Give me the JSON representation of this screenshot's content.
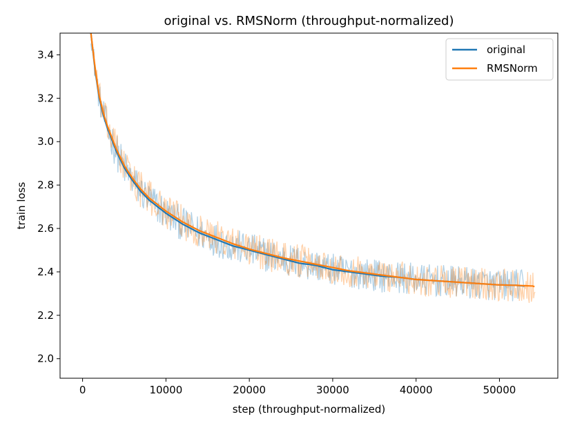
{
  "chart_data": {
    "type": "line",
    "title": "original vs. RMSNorm (throughput-normalized)",
    "xlabel": "step (throughput-normalized)",
    "ylabel": "train loss",
    "xlim": [
      -2700,
      57000
    ],
    "ylim": [
      1.91,
      3.5
    ],
    "x_ticks": [
      0,
      10000,
      20000,
      30000,
      40000,
      50000
    ],
    "y_ticks": [
      2.0,
      2.2,
      2.4,
      2.6,
      2.8,
      3.0,
      3.2,
      3.4
    ],
    "x_tick_labels": [
      "0",
      "10000",
      "20000",
      "30000",
      "40000",
      "50000"
    ],
    "y_tick_labels": [
      "2.0",
      "2.2",
      "2.4",
      "2.6",
      "2.8",
      "3.0",
      "3.2",
      "3.4"
    ],
    "grid": false,
    "legend_position": "top-right",
    "series": [
      {
        "name": "original",
        "color": "#1f77b4",
        "x": [
          1000,
          1500,
          2000,
          2500,
          3000,
          4000,
          5000,
          6000,
          7000,
          8000,
          9000,
          10000,
          12000,
          14000,
          16000,
          18000,
          20000,
          22000,
          24000,
          26000,
          28000,
          30000,
          32000,
          34000,
          36000,
          38000,
          40000,
          42000,
          44000,
          46000,
          48000,
          50000,
          52000,
          53000
        ],
        "smooth": [
          3.5,
          3.33,
          3.2,
          3.12,
          3.06,
          2.96,
          2.88,
          2.82,
          2.77,
          2.73,
          2.7,
          2.67,
          2.62,
          2.58,
          2.55,
          2.52,
          2.5,
          2.48,
          2.46,
          2.44,
          2.43,
          2.41,
          2.4,
          2.39,
          2.38,
          2.375,
          2.365,
          2.36,
          2.355,
          2.35,
          2.345,
          2.34,
          2.338,
          2.335
        ],
        "noise_halfwidth": [
          0.05,
          0.06,
          0.07,
          0.075,
          0.08,
          0.085,
          0.085,
          0.085,
          0.085,
          0.085,
          0.085,
          0.08,
          0.08,
          0.08,
          0.08,
          0.08,
          0.08,
          0.08,
          0.08,
          0.08,
          0.075,
          0.075,
          0.075,
          0.075,
          0.075,
          0.075,
          0.075,
          0.075,
          0.075,
          0.075,
          0.075,
          0.075,
          0.075,
          0.075
        ]
      },
      {
        "name": "RMSNorm",
        "color": "#ff7f0e",
        "x": [
          1000,
          1500,
          2000,
          2500,
          3000,
          4000,
          5000,
          6000,
          7000,
          8000,
          9000,
          10000,
          12000,
          14000,
          16000,
          18000,
          20000,
          22000,
          24000,
          26000,
          28000,
          30000,
          32000,
          34000,
          36000,
          38000,
          40000,
          42000,
          44000,
          46000,
          48000,
          50000,
          52000,
          54000,
          54300
        ],
        "smooth": [
          3.5,
          3.34,
          3.21,
          3.13,
          3.07,
          2.97,
          2.89,
          2.83,
          2.78,
          2.74,
          2.71,
          2.68,
          2.63,
          2.59,
          2.56,
          2.53,
          2.505,
          2.485,
          2.465,
          2.45,
          2.435,
          2.42,
          2.405,
          2.395,
          2.385,
          2.375,
          2.365,
          2.36,
          2.355,
          2.35,
          2.345,
          2.34,
          2.338,
          2.335,
          2.33
        ],
        "noise_halfwidth": [
          0.05,
          0.06,
          0.07,
          0.075,
          0.08,
          0.085,
          0.085,
          0.085,
          0.085,
          0.085,
          0.085,
          0.08,
          0.08,
          0.08,
          0.08,
          0.08,
          0.08,
          0.08,
          0.08,
          0.08,
          0.075,
          0.075,
          0.075,
          0.075,
          0.075,
          0.075,
          0.075,
          0.075,
          0.075,
          0.075,
          0.075,
          0.075,
          0.075,
          0.08,
          0.09
        ]
      }
    ]
  }
}
